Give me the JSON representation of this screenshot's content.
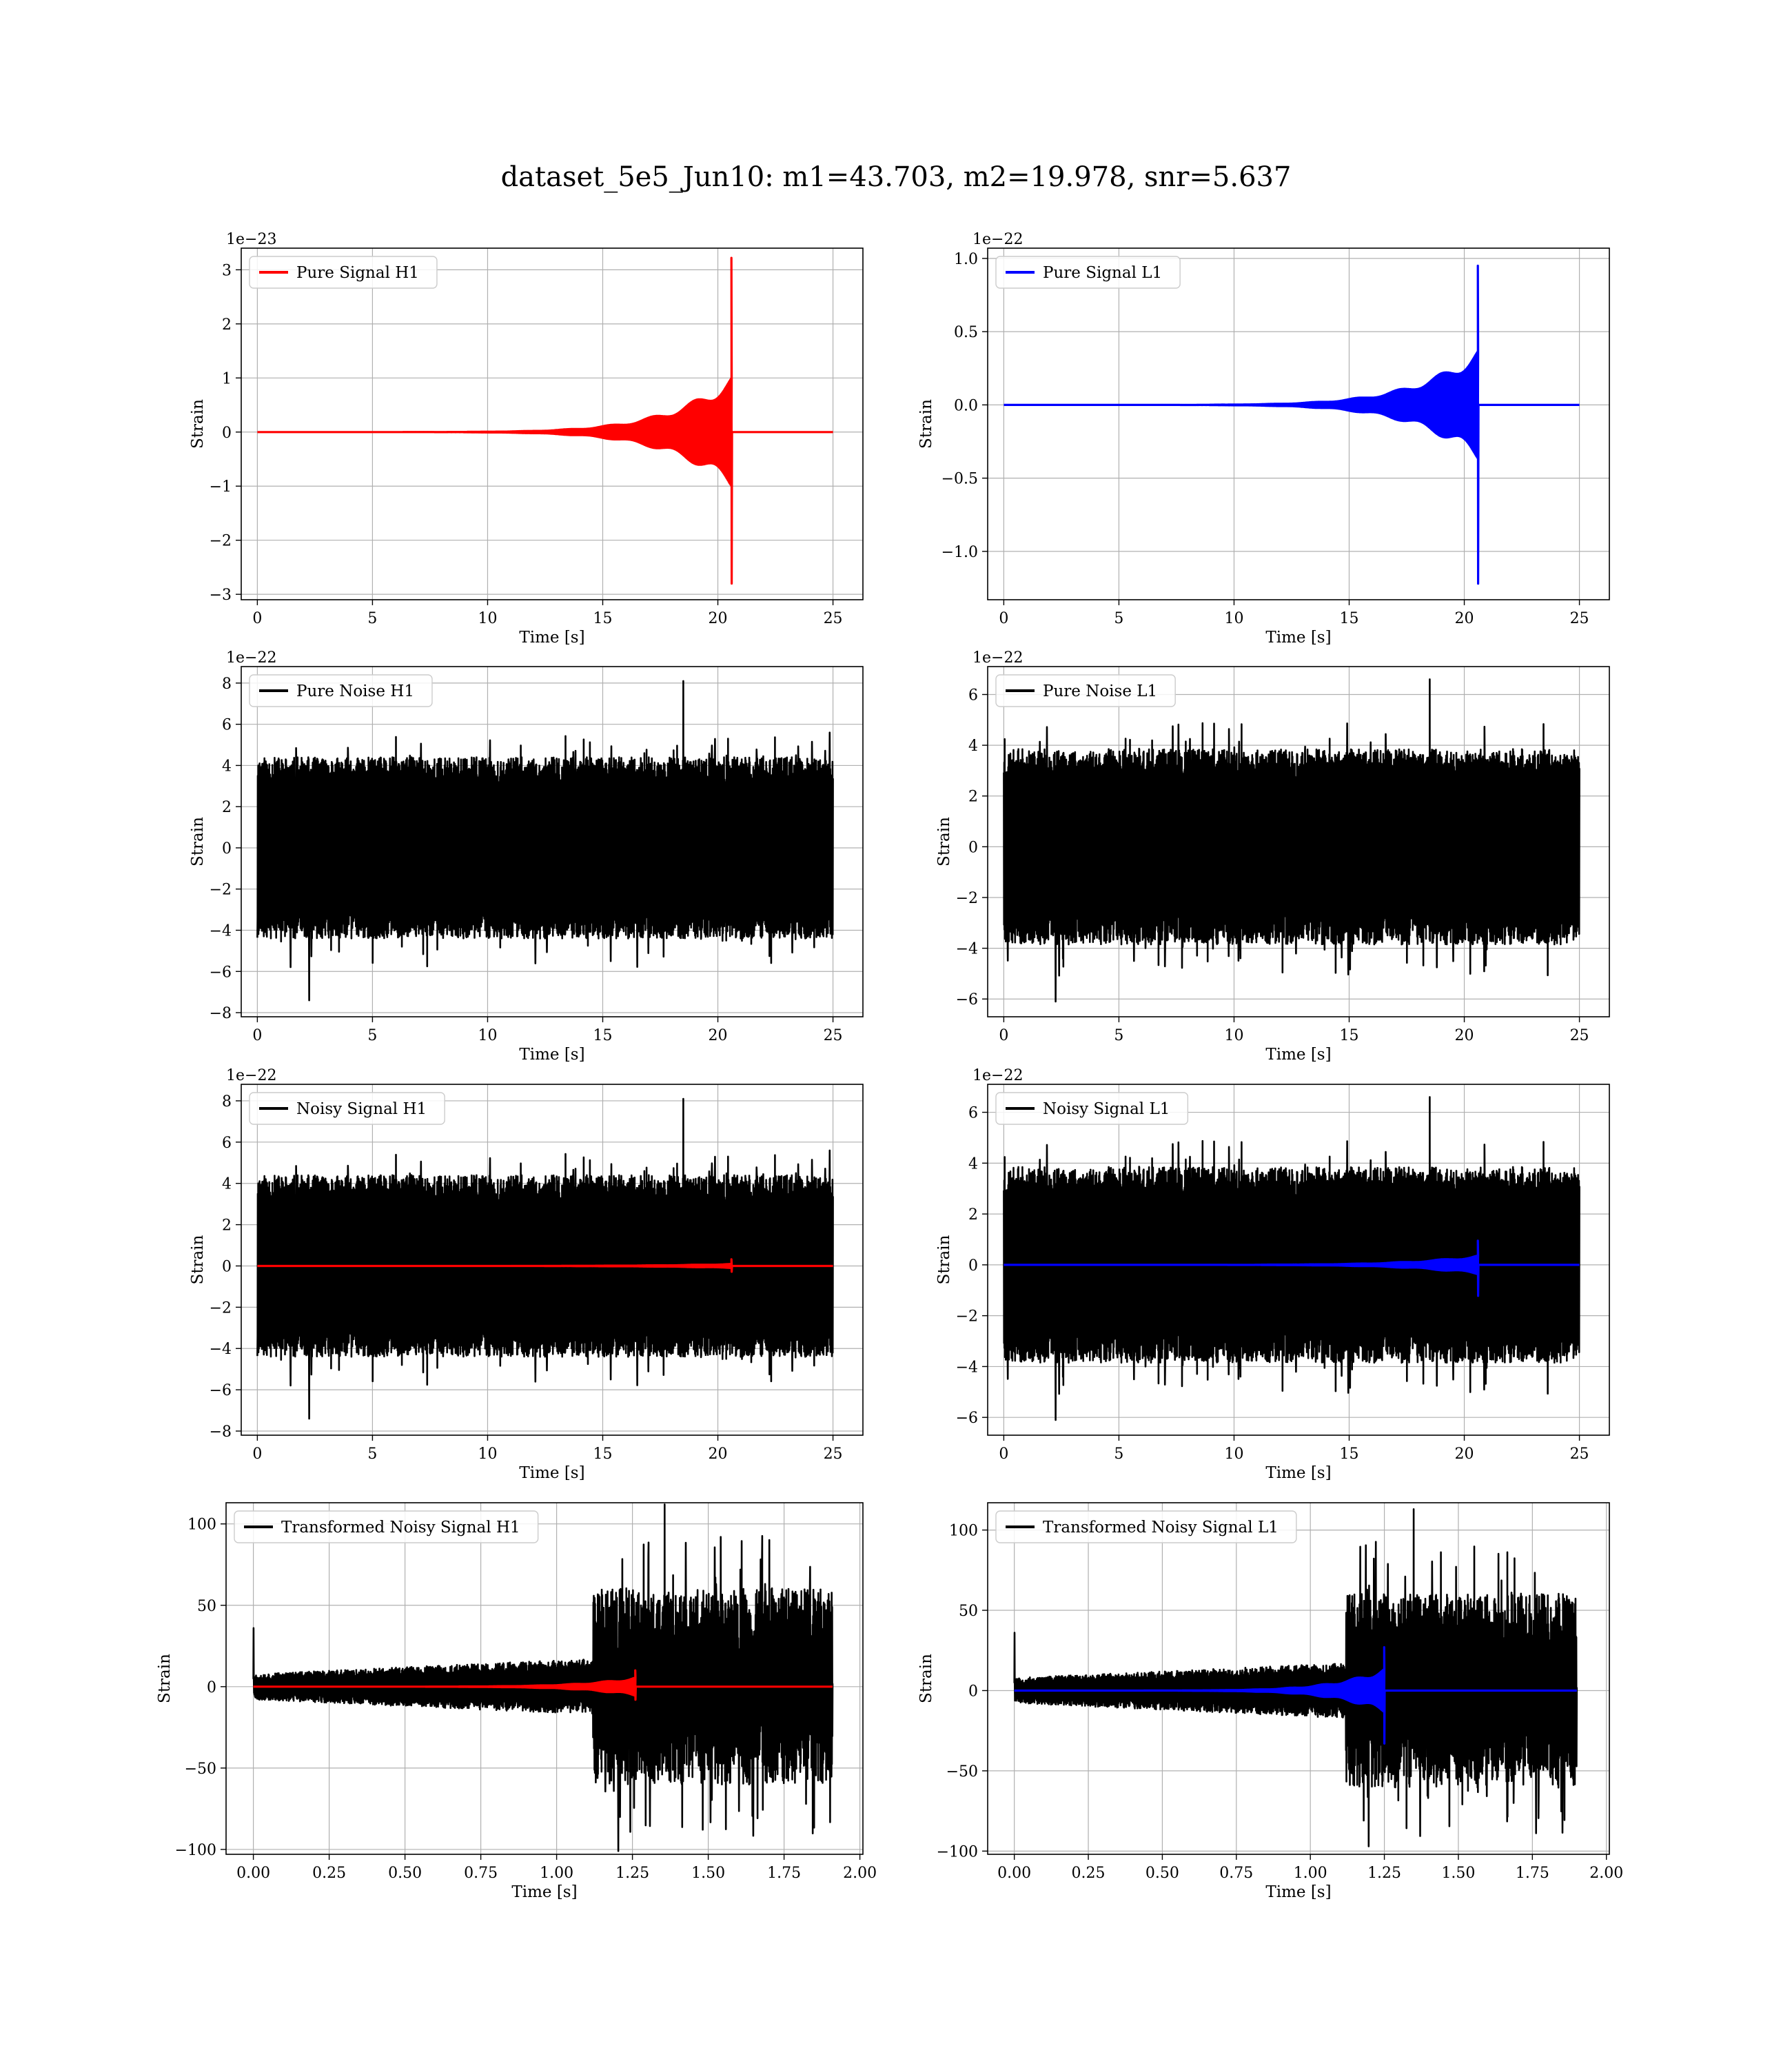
{
  "figure": {
    "title": "dataset_5e5_Jun10: m1=43.703, m2=19.978, snr=5.637"
  },
  "colors": {
    "signal_h1": "#ff0000",
    "signal_l1": "#0000ff",
    "noise": "#000000"
  },
  "chart_data": [
    {
      "type": "line",
      "legend": "Pure Signal H1",
      "legend_placement": "upper-left",
      "xlabel": "Time [s]",
      "ylabel": "Strain",
      "offset_text": "1e−23",
      "xlim": [
        -0.7,
        26.3
      ],
      "ylim": [
        -3.1,
        3.4
      ],
      "xticks": [
        0,
        5,
        10,
        15,
        20,
        25
      ],
      "xtick_labels": [
        "0",
        "5",
        "10",
        "15",
        "20",
        "25"
      ],
      "yticks": [
        -3,
        -2,
        -1,
        0,
        1,
        2,
        3
      ],
      "ytick_labels": [
        "−3",
        "−2",
        "−1",
        "0",
        "1",
        "2",
        "3"
      ],
      "grid": true,
      "series": [
        {
          "kind": "chirp",
          "color": "#ff0000",
          "t_start": 0,
          "t_end": 25,
          "t_merger": 20.6,
          "peak_pos": 3.22,
          "peak_neg": -2.8,
          "pre_merger_amp": 0.9
        }
      ]
    },
    {
      "type": "line",
      "legend": "Pure Signal L1",
      "legend_placement": "upper-left",
      "xlabel": "Time [s]",
      "ylabel": "Strain",
      "offset_text": "1e−22",
      "xlim": [
        -0.7,
        26.3
      ],
      "ylim": [
        -1.33,
        1.07
      ],
      "xticks": [
        0,
        5,
        10,
        15,
        20,
        25
      ],
      "xtick_labels": [
        "0",
        "5",
        "10",
        "15",
        "20",
        "25"
      ],
      "yticks": [
        -1.0,
        -0.5,
        0.0,
        0.5,
        1.0
      ],
      "ytick_labels": [
        "−1.0",
        "−0.5",
        "0.0",
        "0.5",
        "1.0"
      ],
      "grid": true,
      "series": [
        {
          "kind": "chirp",
          "color": "#0000ff",
          "t_start": 0,
          "t_end": 25,
          "t_merger": 20.6,
          "peak_pos": 0.95,
          "peak_neg": -1.22,
          "pre_merger_amp": 0.33
        }
      ]
    },
    {
      "type": "line",
      "legend": "Pure Noise H1",
      "legend_placement": "upper-left",
      "xlabel": "Time [s]",
      "ylabel": "Strain",
      "offset_text": "1e−22",
      "xlim": [
        -0.7,
        26.3
      ],
      "ylim": [
        -8.2,
        8.8
      ],
      "xticks": [
        0,
        5,
        10,
        15,
        20,
        25
      ],
      "xtick_labels": [
        "0",
        "5",
        "10",
        "15",
        "20",
        "25"
      ],
      "yticks": [
        -8,
        -6,
        -4,
        -2,
        0,
        2,
        4,
        6,
        8
      ],
      "ytick_labels": [
        "−8",
        "−6",
        "−4",
        "−2",
        "0",
        "2",
        "4",
        "6",
        "8"
      ],
      "grid": true,
      "series": [
        {
          "kind": "noise",
          "color": "#000000",
          "t_start": 0,
          "t_end": 25,
          "band": 4.0,
          "spike_max": 8.1,
          "spike_min": -7.4,
          "seed": 11
        }
      ]
    },
    {
      "type": "line",
      "legend": "Pure Noise L1",
      "legend_placement": "upper-left",
      "xlabel": "Time [s]",
      "ylabel": "Strain",
      "offset_text": "1e−22",
      "xlim": [
        -0.7,
        26.3
      ],
      "ylim": [
        -6.7,
        7.1
      ],
      "xticks": [
        0,
        5,
        10,
        15,
        20,
        25
      ],
      "xtick_labels": [
        "0",
        "5",
        "10",
        "15",
        "20",
        "25"
      ],
      "yticks": [
        -6,
        -4,
        -2,
        0,
        2,
        4,
        6
      ],
      "ytick_labels": [
        "−6",
        "−4",
        "−2",
        "0",
        "2",
        "4",
        "6"
      ],
      "grid": true,
      "series": [
        {
          "kind": "noise",
          "color": "#000000",
          "t_start": 0,
          "t_end": 25,
          "band": 3.5,
          "spike_max": 6.6,
          "spike_min": -6.1,
          "seed": 23
        }
      ]
    },
    {
      "type": "line",
      "legend": "Noisy Signal H1",
      "legend_placement": "upper-left",
      "xlabel": "Time [s]",
      "ylabel": "Strain",
      "offset_text": "1e−22",
      "xlim": [
        -0.7,
        26.3
      ],
      "ylim": [
        -8.2,
        8.8
      ],
      "xticks": [
        0,
        5,
        10,
        15,
        20,
        25
      ],
      "xtick_labels": [
        "0",
        "5",
        "10",
        "15",
        "20",
        "25"
      ],
      "yticks": [
        -8,
        -6,
        -4,
        -2,
        0,
        2,
        4,
        6,
        8
      ],
      "ytick_labels": [
        "−8",
        "−6",
        "−4",
        "−2",
        "0",
        "2",
        "4",
        "6",
        "8"
      ],
      "grid": true,
      "series": [
        {
          "kind": "noise",
          "color": "#000000",
          "t_start": 0,
          "t_end": 25,
          "band": 4.0,
          "spike_max": 8.1,
          "spike_min": -7.4,
          "seed": 11
        },
        {
          "kind": "chirp",
          "color": "#ff0000",
          "t_start": 0,
          "t_end": 25,
          "t_merger": 20.6,
          "peak_pos": 0.32,
          "peak_neg": -0.28,
          "pre_merger_amp": 0.09
        }
      ]
    },
    {
      "type": "line",
      "legend": "Noisy Signal L1",
      "legend_placement": "upper-left",
      "xlabel": "Time [s]",
      "ylabel": "Strain",
      "offset_text": "1e−22",
      "xlim": [
        -0.7,
        26.3
      ],
      "ylim": [
        -6.7,
        7.1
      ],
      "xticks": [
        0,
        5,
        10,
        15,
        20,
        25
      ],
      "xtick_labels": [
        "0",
        "5",
        "10",
        "15",
        "20",
        "25"
      ],
      "yticks": [
        -6,
        -4,
        -2,
        0,
        2,
        4,
        6
      ],
      "ytick_labels": [
        "−6",
        "−4",
        "−2",
        "0",
        "2",
        "4",
        "6"
      ],
      "grid": true,
      "series": [
        {
          "kind": "noise",
          "color": "#000000",
          "t_start": 0,
          "t_end": 25,
          "band": 3.5,
          "spike_max": 6.6,
          "spike_min": -6.1,
          "seed": 23
        },
        {
          "kind": "chirp",
          "color": "#0000ff",
          "t_start": 0,
          "t_end": 25,
          "t_merger": 20.6,
          "peak_pos": 0.95,
          "peak_neg": -1.22,
          "pre_merger_amp": 0.33
        }
      ]
    },
    {
      "type": "line",
      "legend": "Transformed Noisy Signal H1",
      "legend_placement": "upper-left",
      "xlabel": "Time [s]",
      "ylabel": "Strain",
      "offset_text": "",
      "xlim": [
        -0.09,
        2.01
      ],
      "ylim": [
        -103,
        113
      ],
      "xticks": [
        0.0,
        0.25,
        0.5,
        0.75,
        1.0,
        1.25,
        1.5,
        1.75,
        2.0
      ],
      "xtick_labels": [
        "0.00",
        "0.25",
        "0.50",
        "0.75",
        "1.00",
        "1.25",
        "1.50",
        "1.75",
        "2.00"
      ],
      "yticks": [
        -100,
        -50,
        0,
        50,
        100
      ],
      "ytick_labels": [
        "−100",
        "−50",
        "0",
        "50",
        "100"
      ],
      "grid": true,
      "series": [
        {
          "kind": "whitened",
          "color": "#000000",
          "t_start": 0,
          "t_end": 1.91,
          "t_jump": 1.12,
          "amp_early": 12,
          "amp_late": 55,
          "spike_max": 112,
          "spike_min": -101,
          "seed": 37
        },
        {
          "kind": "chirp",
          "color": "#ff0000",
          "t_start": 0,
          "t_end": 1.91,
          "t_merger": 1.26,
          "peak_pos": 10,
          "peak_neg": -8,
          "pre_merger_amp": 5
        }
      ]
    },
    {
      "type": "line",
      "legend": "Transformed Noisy Signal L1",
      "legend_placement": "upper-left",
      "xlabel": "Time [s]",
      "ylabel": "Strain",
      "offset_text": "",
      "xlim": [
        -0.09,
        2.01
      ],
      "ylim": [
        -102,
        117
      ],
      "xticks": [
        0.0,
        0.25,
        0.5,
        0.75,
        1.0,
        1.25,
        1.5,
        1.75,
        2.0
      ],
      "xtick_labels": [
        "0.00",
        "0.25",
        "0.50",
        "0.75",
        "1.00",
        "1.25",
        "1.50",
        "1.75",
        "2.00"
      ],
      "yticks": [
        -100,
        -50,
        0,
        50,
        100
      ],
      "ytick_labels": [
        "−100",
        "−50",
        "0",
        "50",
        "100"
      ],
      "grid": true,
      "series": [
        {
          "kind": "whitened",
          "color": "#000000",
          "t_start": 0,
          "t_end": 1.9,
          "t_jump": 1.12,
          "amp_early": 12,
          "amp_late": 55,
          "spike_max": 113,
          "spike_min": -97,
          "seed": 53
        },
        {
          "kind": "chirp",
          "color": "#0000ff",
          "t_start": 0,
          "t_end": 1.9,
          "t_merger": 1.25,
          "peak_pos": 27,
          "peak_neg": -33,
          "pre_merger_amp": 12
        }
      ]
    }
  ]
}
